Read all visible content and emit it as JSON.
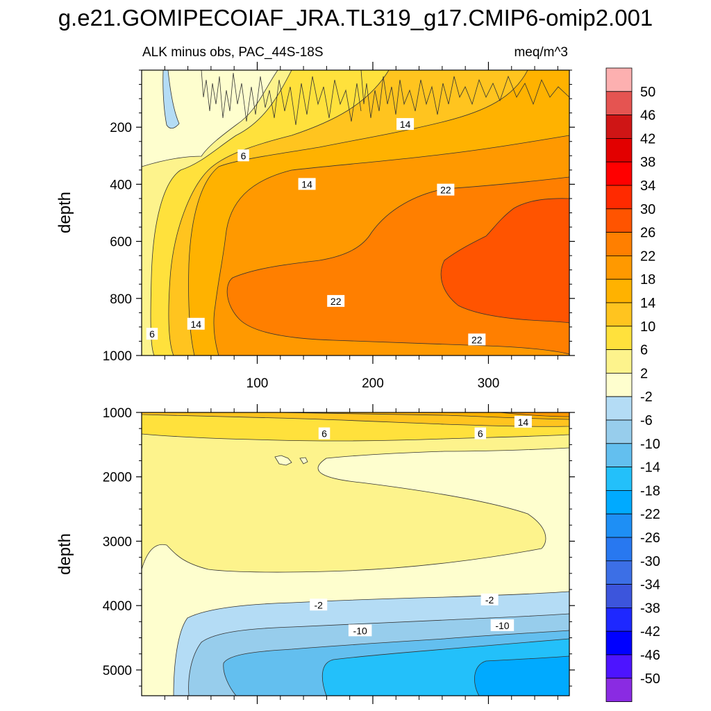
{
  "title": "g.e21.GOMIPECOIAF_JRA.TL319_g17.CMIP6-omip2.001",
  "panel_label": "ALK minus obs, PAC_44S-18S",
  "units": "meq/m^3",
  "chart_data": [
    {
      "type": "contour",
      "name": "upper panel",
      "xlabel": "",
      "ylabel": "depth",
      "xlim": [
        0,
        370
      ],
      "ylim": [
        1000,
        0
      ],
      "x_ticks": [
        100,
        200,
        300
      ],
      "y_ticks": [
        200,
        400,
        600,
        800,
        1000
      ],
      "contour_labels": [
        {
          "text": "6",
          "x": 88,
          "y": 300
        },
        {
          "text": "14",
          "x": 228,
          "y": 190
        },
        {
          "text": "14",
          "x": 143,
          "y": 400
        },
        {
          "text": "22",
          "x": 263,
          "y": 420
        },
        {
          "text": "22",
          "x": 168,
          "y": 810
        },
        {
          "text": "22",
          "x": 290,
          "y": 945
        },
        {
          "text": "14",
          "x": 47,
          "y": 890
        },
        {
          "text": "6",
          "x": 9,
          "y": 925
        }
      ]
    },
    {
      "type": "contour",
      "name": "lower panel",
      "xlabel": "",
      "ylabel": "depth",
      "xlim": [
        0,
        370
      ],
      "ylim": [
        5400,
        1000
      ],
      "y_ticks": [
        1000,
        2000,
        3000,
        4000,
        5000
      ],
      "contour_labels": [
        {
          "text": "14",
          "x": 330,
          "y": 1150
        },
        {
          "text": "6",
          "x": 158,
          "y": 1330
        },
        {
          "text": "6",
          "x": 293,
          "y": 1330
        },
        {
          "text": "-2",
          "x": 153,
          "y": 3990
        },
        {
          "text": "-2",
          "x": 301,
          "y": 3910
        },
        {
          "text": "-10",
          "x": 189,
          "y": 4390
        },
        {
          "text": "-10",
          "x": 312,
          "y": 4310
        }
      ]
    }
  ],
  "colorbar": {
    "labels": [
      "50",
      "46",
      "42",
      "38",
      "34",
      "30",
      "26",
      "22",
      "18",
      "14",
      "10",
      "6",
      "2",
      "-2",
      "-6",
      "-10",
      "-14",
      "-18",
      "-22",
      "-26",
      "-30",
      "-34",
      "-38",
      "-42",
      "-46",
      "-50"
    ],
    "colors": [
      "#fdb0b0",
      "#e55451",
      "#cf1515",
      "#e20000",
      "#ff0000",
      "#ff2a00",
      "#ff5400",
      "#ff7f00",
      "#ff9900",
      "#ffb200",
      "#ffc41f",
      "#ffe13c",
      "#fdf38c",
      "#fefece",
      "#b4dcf5",
      "#97cdec",
      "#63bfef",
      "#23c0fa",
      "#00aaff",
      "#1e8ff5",
      "#2878f0",
      "#3c6fe6",
      "#3c55dc",
      "#1e28ff",
      "#0000ff",
      "#4d14ff",
      "#8a2be2"
    ]
  }
}
